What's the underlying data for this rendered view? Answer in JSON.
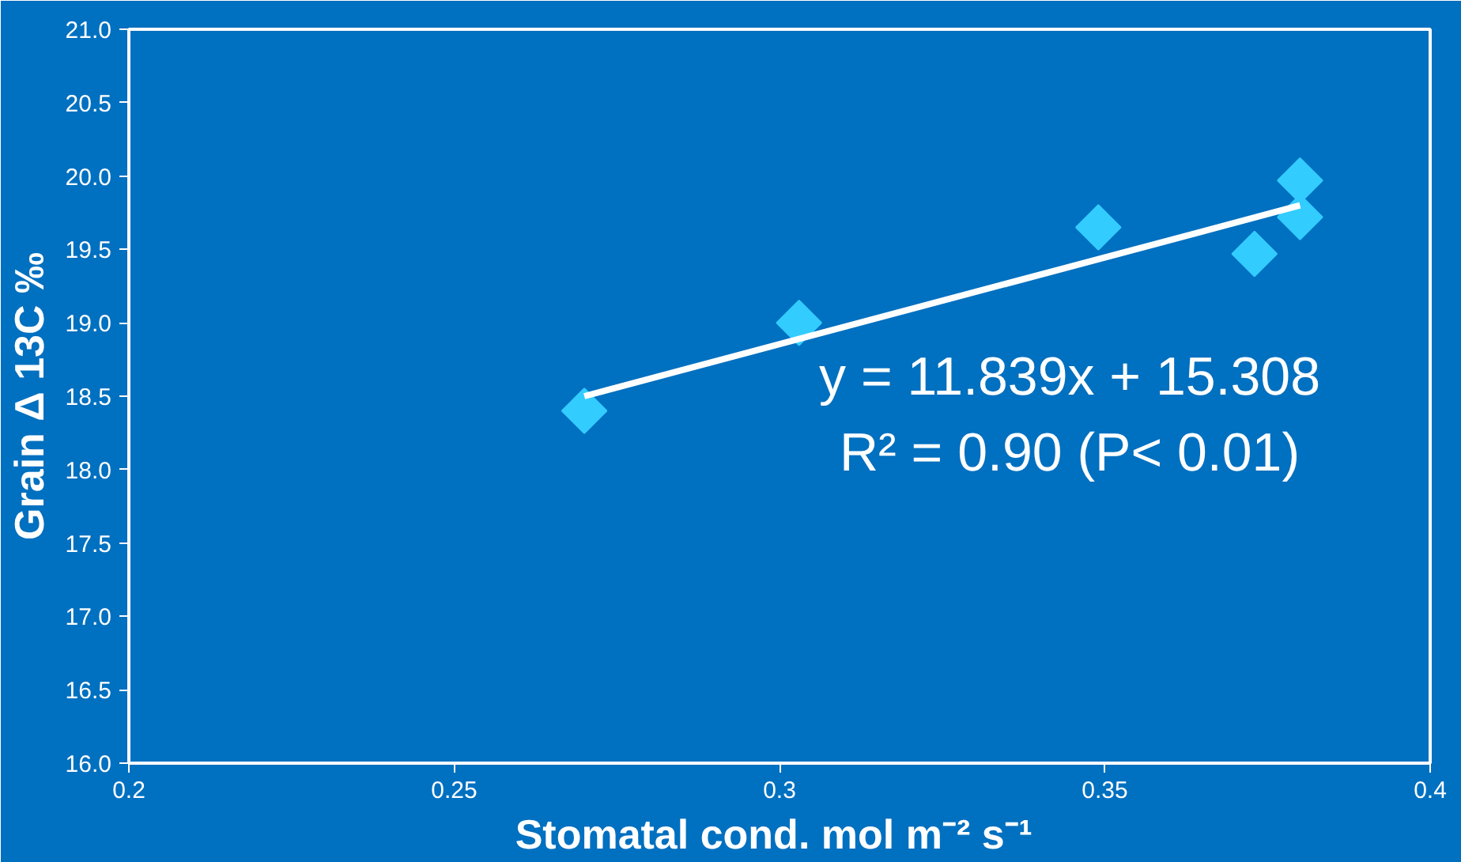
{
  "chart_data": {
    "type": "scatter",
    "xlabel": "Stomatal cond.  mol m⁻² s⁻¹",
    "ylabel": "Grain Δ 13C ‰",
    "annotations": [
      "y = 11.839x + 15.308",
      "R² = 0.90 (P< 0.01)"
    ],
    "grid": false,
    "xlim": [
      0.2,
      0.4
    ],
    "ylim": [
      16.0,
      21.0
    ],
    "xticks": [
      {
        "value": 0.2,
        "label": "0.2"
      },
      {
        "value": 0.25,
        "label": "0.25"
      },
      {
        "value": 0.3,
        "label": "0.3"
      },
      {
        "value": 0.35,
        "label": "0.35"
      },
      {
        "value": 0.4,
        "label": "0.4"
      }
    ],
    "yticks": [
      {
        "value": 16.0,
        "label": "16.0"
      },
      {
        "value": 16.5,
        "label": "16.5"
      },
      {
        "value": 17.0,
        "label": "17.0"
      },
      {
        "value": 17.5,
        "label": "17.5"
      },
      {
        "value": 18.0,
        "label": "18.0"
      },
      {
        "value": 18.5,
        "label": "18.5"
      },
      {
        "value": 19.0,
        "label": "19.0"
      },
      {
        "value": 19.5,
        "label": "19.5"
      },
      {
        "value": 20.0,
        "label": "20.0"
      },
      {
        "value": 20.5,
        "label": "20.5"
      },
      {
        "value": 21.0,
        "label": "21.0"
      }
    ],
    "series": [
      {
        "marker": "diamond",
        "color": "#33ccff",
        "x": [
          0.27,
          0.303,
          0.349,
          0.373,
          0.38,
          0.38
        ],
        "values": [
          18.4,
          19.0,
          19.65,
          19.47,
          19.72,
          19.97
        ]
      },
      {
        "type": "line",
        "marker": "none",
        "color": "#ffffff",
        "x": [
          0.27,
          0.38
        ],
        "values": [
          18.5,
          19.8
        ]
      }
    ]
  }
}
